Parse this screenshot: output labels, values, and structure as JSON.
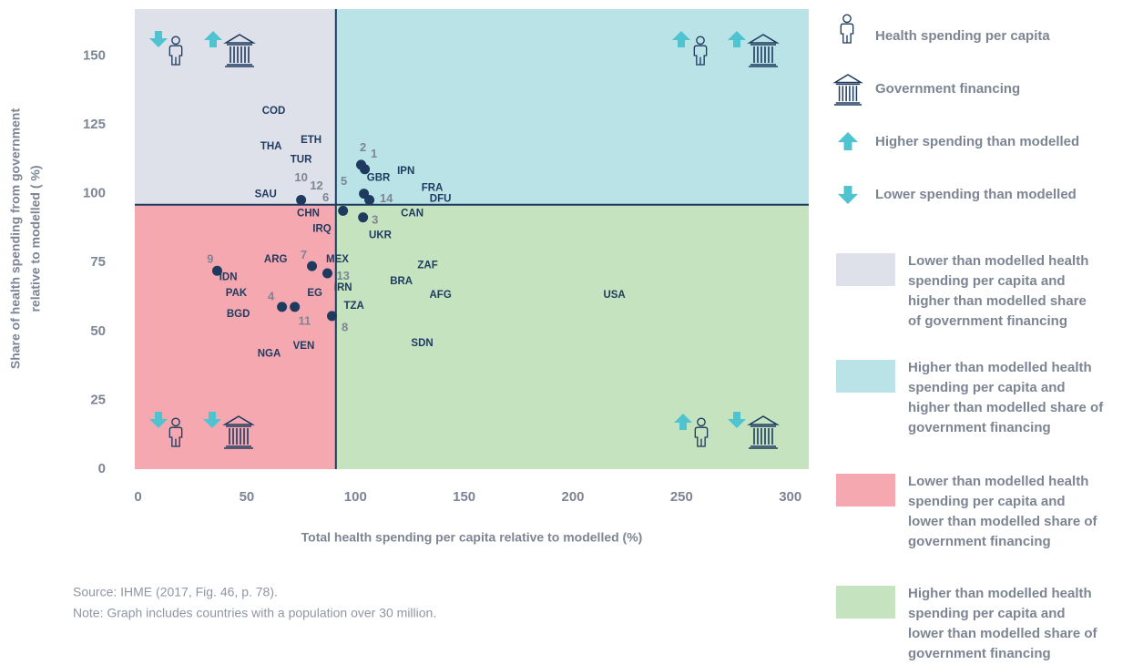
{
  "chart_data": {
    "type": "scatter",
    "xlabel": "Total health spending per capita relative to modelled (%)",
    "ylabel": [
      "Share of health spending from government",
      "relative to modelled ( %)"
    ],
    "xlim": [
      -1.5,
      308.5
    ],
    "xticks": [
      0,
      50,
      100,
      150,
      200,
      250,
      300
    ],
    "ylim": [
      0,
      167
    ],
    "yticks": [
      0,
      25,
      50,
      75,
      100,
      125,
      150
    ],
    "reference_lines": {
      "x": 91,
      "y": 96,
      "color": "#1e3a5f"
    },
    "quadrants": [
      {
        "color": "#dfe1ea",
        "lines": [
          "Lower than modelled health",
          "spending per capita and",
          "higher than modelled share",
          "of government financing"
        ]
      },
      {
        "color": "#b9e3e6",
        "lines": [
          "Higher than modelled health",
          "spending per capita and",
          "higher than modelled share of",
          "government financing"
        ]
      },
      {
        "color": "#f5a8b0",
        "lines": [
          "Lower than modelled health",
          "spending per capita and",
          "lower than modelled share of",
          "government financing"
        ]
      },
      {
        "color": "#c5e3bf",
        "lines": [
          "Higher than modelled health",
          "spending per capita and",
          "lower than modelled share of",
          "government financing"
        ]
      }
    ],
    "legend": [
      "Health spending per capita",
      "Government financing",
      "Higher spending than modelled",
      "Lower spending than modelled"
    ],
    "arrow_color": "#4fc3cf",
    "point_color": "#1e3a5f",
    "x": [
      102.6,
      104.3,
      103.9,
      106.4,
      75,
      94.3,
      103.5,
      36.4,
      80,
      87.1,
      66.2,
      72.1,
      89.2
    ],
    "values": [
      110.5,
      108.9,
      100,
      97.7,
      97.7,
      93.8,
      91.4,
      72,
      73.7,
      71.1,
      58.9,
      58.9,
      55.6
    ],
    "number_labels": [
      {
        "text": "2",
        "x": 103.5,
        "y": 116.5
      },
      {
        "text": "1",
        "x": 108.5,
        "y": 114.2
      },
      {
        "text": "10",
        "x": 75,
        "y": 105.6
      },
      {
        "text": "12",
        "x": 82.1,
        "y": 102.6
      },
      {
        "text": "5",
        "x": 94.7,
        "y": 104.3
      },
      {
        "text": "6",
        "x": 86.3,
        "y": 98.3
      },
      {
        "text": "14",
        "x": 114.2,
        "y": 98
      },
      {
        "text": "3",
        "x": 109,
        "y": 90.2
      },
      {
        "text": "9",
        "x": 33.2,
        "y": 76
      },
      {
        "text": "7",
        "x": 76.2,
        "y": 77.6
      },
      {
        "text": "13",
        "x": 94.3,
        "y": 70
      },
      {
        "text": "4",
        "x": 61.2,
        "y": 62.5
      },
      {
        "text": "11",
        "x": 76.6,
        "y": 53.6
      },
      {
        "text": "8",
        "x": 95.1,
        "y": 51.3
      }
    ],
    "country_labels": [
      {
        "text": "COD",
        "x": 62.4,
        "y": 129.9
      },
      {
        "text": "THA",
        "x": 61.2,
        "y": 117.1
      },
      {
        "text": "ETH",
        "x": 79.6,
        "y": 119.4
      },
      {
        "text": "TUR",
        "x": 75,
        "y": 112.2
      },
      {
        "text": "SAU",
        "x": 58.7,
        "y": 99.7
      },
      {
        "text": "CHN",
        "x": 78.3,
        "y": 92.8
      },
      {
        "text": "IRQ",
        "x": 84.6,
        "y": 87.2
      },
      {
        "text": "GBR",
        "x": 110.6,
        "y": 105.6
      },
      {
        "text": "IPN",
        "x": 123.2,
        "y": 108.2
      },
      {
        "text": "FRA",
        "x": 135.3,
        "y": 102
      },
      {
        "text": "DFU",
        "x": 139.1,
        "y": 98
      },
      {
        "text": "CAN",
        "x": 126.1,
        "y": 92.8
      },
      {
        "text": "UKR",
        "x": 111.4,
        "y": 84.9
      },
      {
        "text": "ARG",
        "x": 63.3,
        "y": 76
      },
      {
        "text": "MEX",
        "x": 91.7,
        "y": 76
      },
      {
        "text": "ZAF",
        "x": 133.2,
        "y": 74
      },
      {
        "text": "IDN",
        "x": 41.5,
        "y": 69.7
      },
      {
        "text": "BRA",
        "x": 121.1,
        "y": 68.1
      },
      {
        "text": "IRN",
        "x": 94.3,
        "y": 65.8
      },
      {
        "text": "PAK",
        "x": 45.2,
        "y": 63.8
      },
      {
        "text": "AFG",
        "x": 139.1,
        "y": 63.2
      },
      {
        "text": "USA",
        "x": 219.1,
        "y": 63.2
      },
      {
        "text": "EG",
        "x": 81.3,
        "y": 63.8
      },
      {
        "text": "TZA",
        "x": 99.3,
        "y": 59.2
      },
      {
        "text": "BGD",
        "x": 46.1,
        "y": 56.3
      },
      {
        "text": "VEN",
        "x": 76.2,
        "y": 44.7
      },
      {
        "text": "SDN",
        "x": 130.7,
        "y": 45.7
      },
      {
        "text": "NGA",
        "x": 60.3,
        "y": 41.8
      }
    ],
    "source": "Source: IHME (2017, Fig. 46, p. 78).",
    "note": "Note: Graph includes countries with a population over 30 million."
  }
}
